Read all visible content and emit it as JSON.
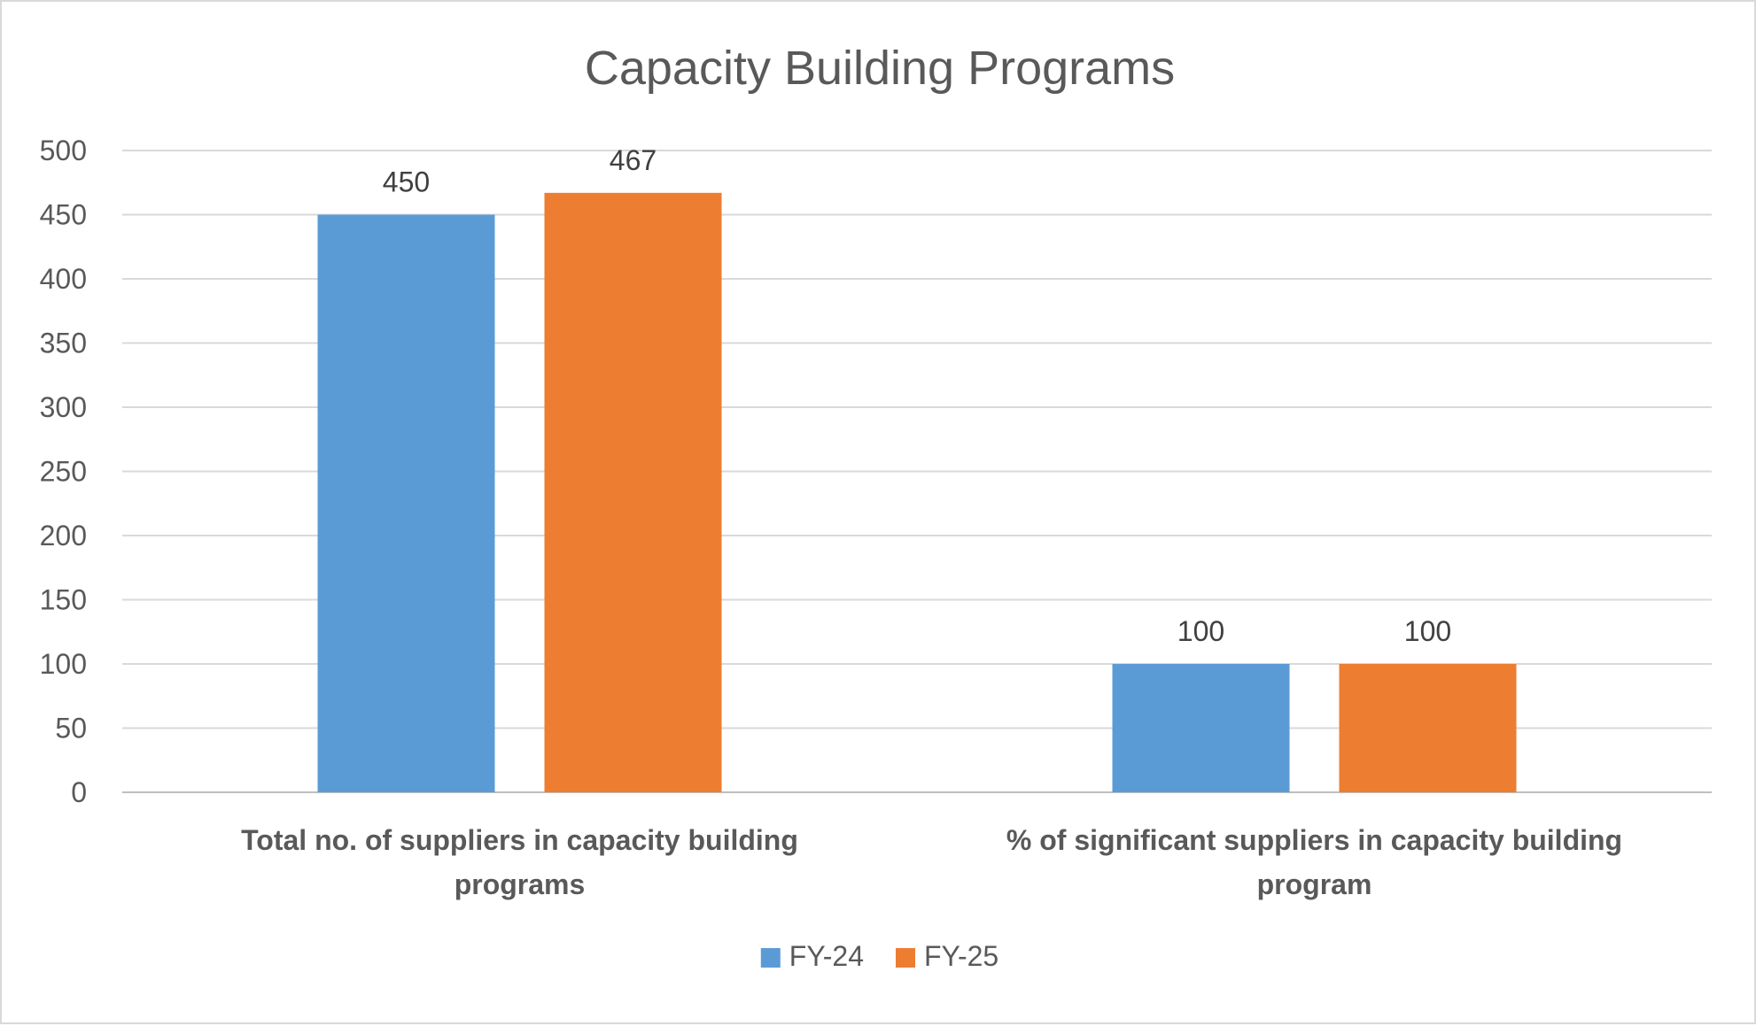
{
  "chart_data": {
    "type": "bar",
    "title": "Capacity Building Programs",
    "categories": [
      [
        "Total no. of suppliers in capacity building",
        "programs"
      ],
      [
        "% of significant suppliers in capacity building",
        "program"
      ]
    ],
    "series": [
      {
        "name": "FY-24",
        "color": "#5b9bd5",
        "values": [
          450,
          100
        ]
      },
      {
        "name": "FY-25",
        "color": "#ed7d31",
        "values": [
          467,
          100
        ]
      }
    ],
    "ylim": [
      0,
      500
    ],
    "yticks": [
      0,
      50,
      100,
      150,
      200,
      250,
      300,
      350,
      400,
      450,
      500
    ],
    "grid": true,
    "legend_position": "bottom",
    "data_labels": true
  }
}
